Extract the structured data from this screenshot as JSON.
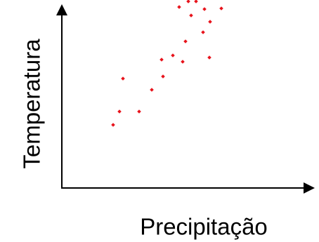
{
  "chart_data": {
    "type": "scatter",
    "xlabel": "Precipitação",
    "ylabel": "Temperatura",
    "xlim": [
      0,
      357
    ],
    "ylim": [
      0,
      268
    ],
    "color": "#e8141c",
    "x": [
      73,
      82,
      87,
      110,
      128,
      142,
      144,
      158,
      172,
      176,
      184,
      167,
      180,
      191,
      203,
      201,
      210,
      211,
      227
    ],
    "values": [
      90,
      109,
      156,
      109,
      140,
      183,
      159,
      189,
      180,
      209,
      246,
      258,
      266,
      266,
      255,
      222,
      186,
      237,
      256
    ]
  }
}
